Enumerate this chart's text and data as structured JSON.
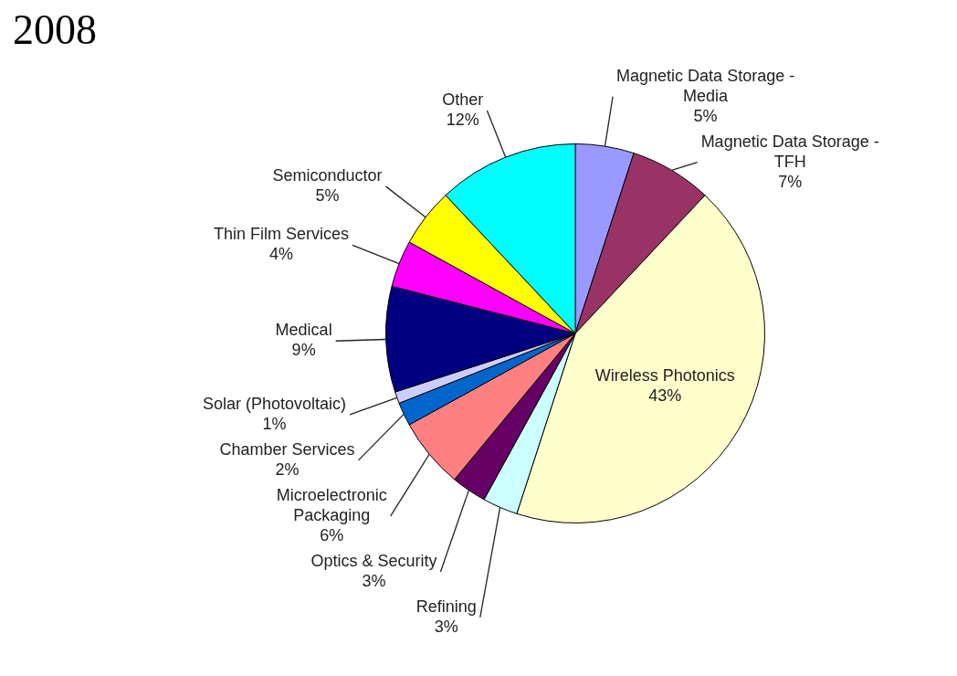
{
  "chart_data": {
    "type": "pie",
    "title": "2008",
    "categories": [
      "Magnetic Data Storage - Media",
      "Magnetic Data Storage - TFH",
      "Wireless Photonics",
      "Refining",
      "Optics & Security",
      "Microelectronic Packaging",
      "Chamber Services",
      "Solar (Photovoltaic)",
      "Medical",
      "Thin Film Services",
      "Semiconductor",
      "Other"
    ],
    "values": [
      5,
      7,
      43,
      3,
      3,
      6,
      2,
      1,
      9,
      4,
      5,
      12
    ],
    "value_labels": [
      "5%",
      "7%",
      "43%",
      "3%",
      "3%",
      "6%",
      "2%",
      "1%",
      "9%",
      "4%",
      "5%",
      "12%"
    ],
    "colors": [
      "#9999ff",
      "#993366",
      "#ffffcc",
      "#ccffff",
      "#660066",
      "#ff8080",
      "#0066cc",
      "#ccccff",
      "#000080",
      "#ff00ff",
      "#ffff00",
      "#00ffff"
    ],
    "legend": false
  }
}
